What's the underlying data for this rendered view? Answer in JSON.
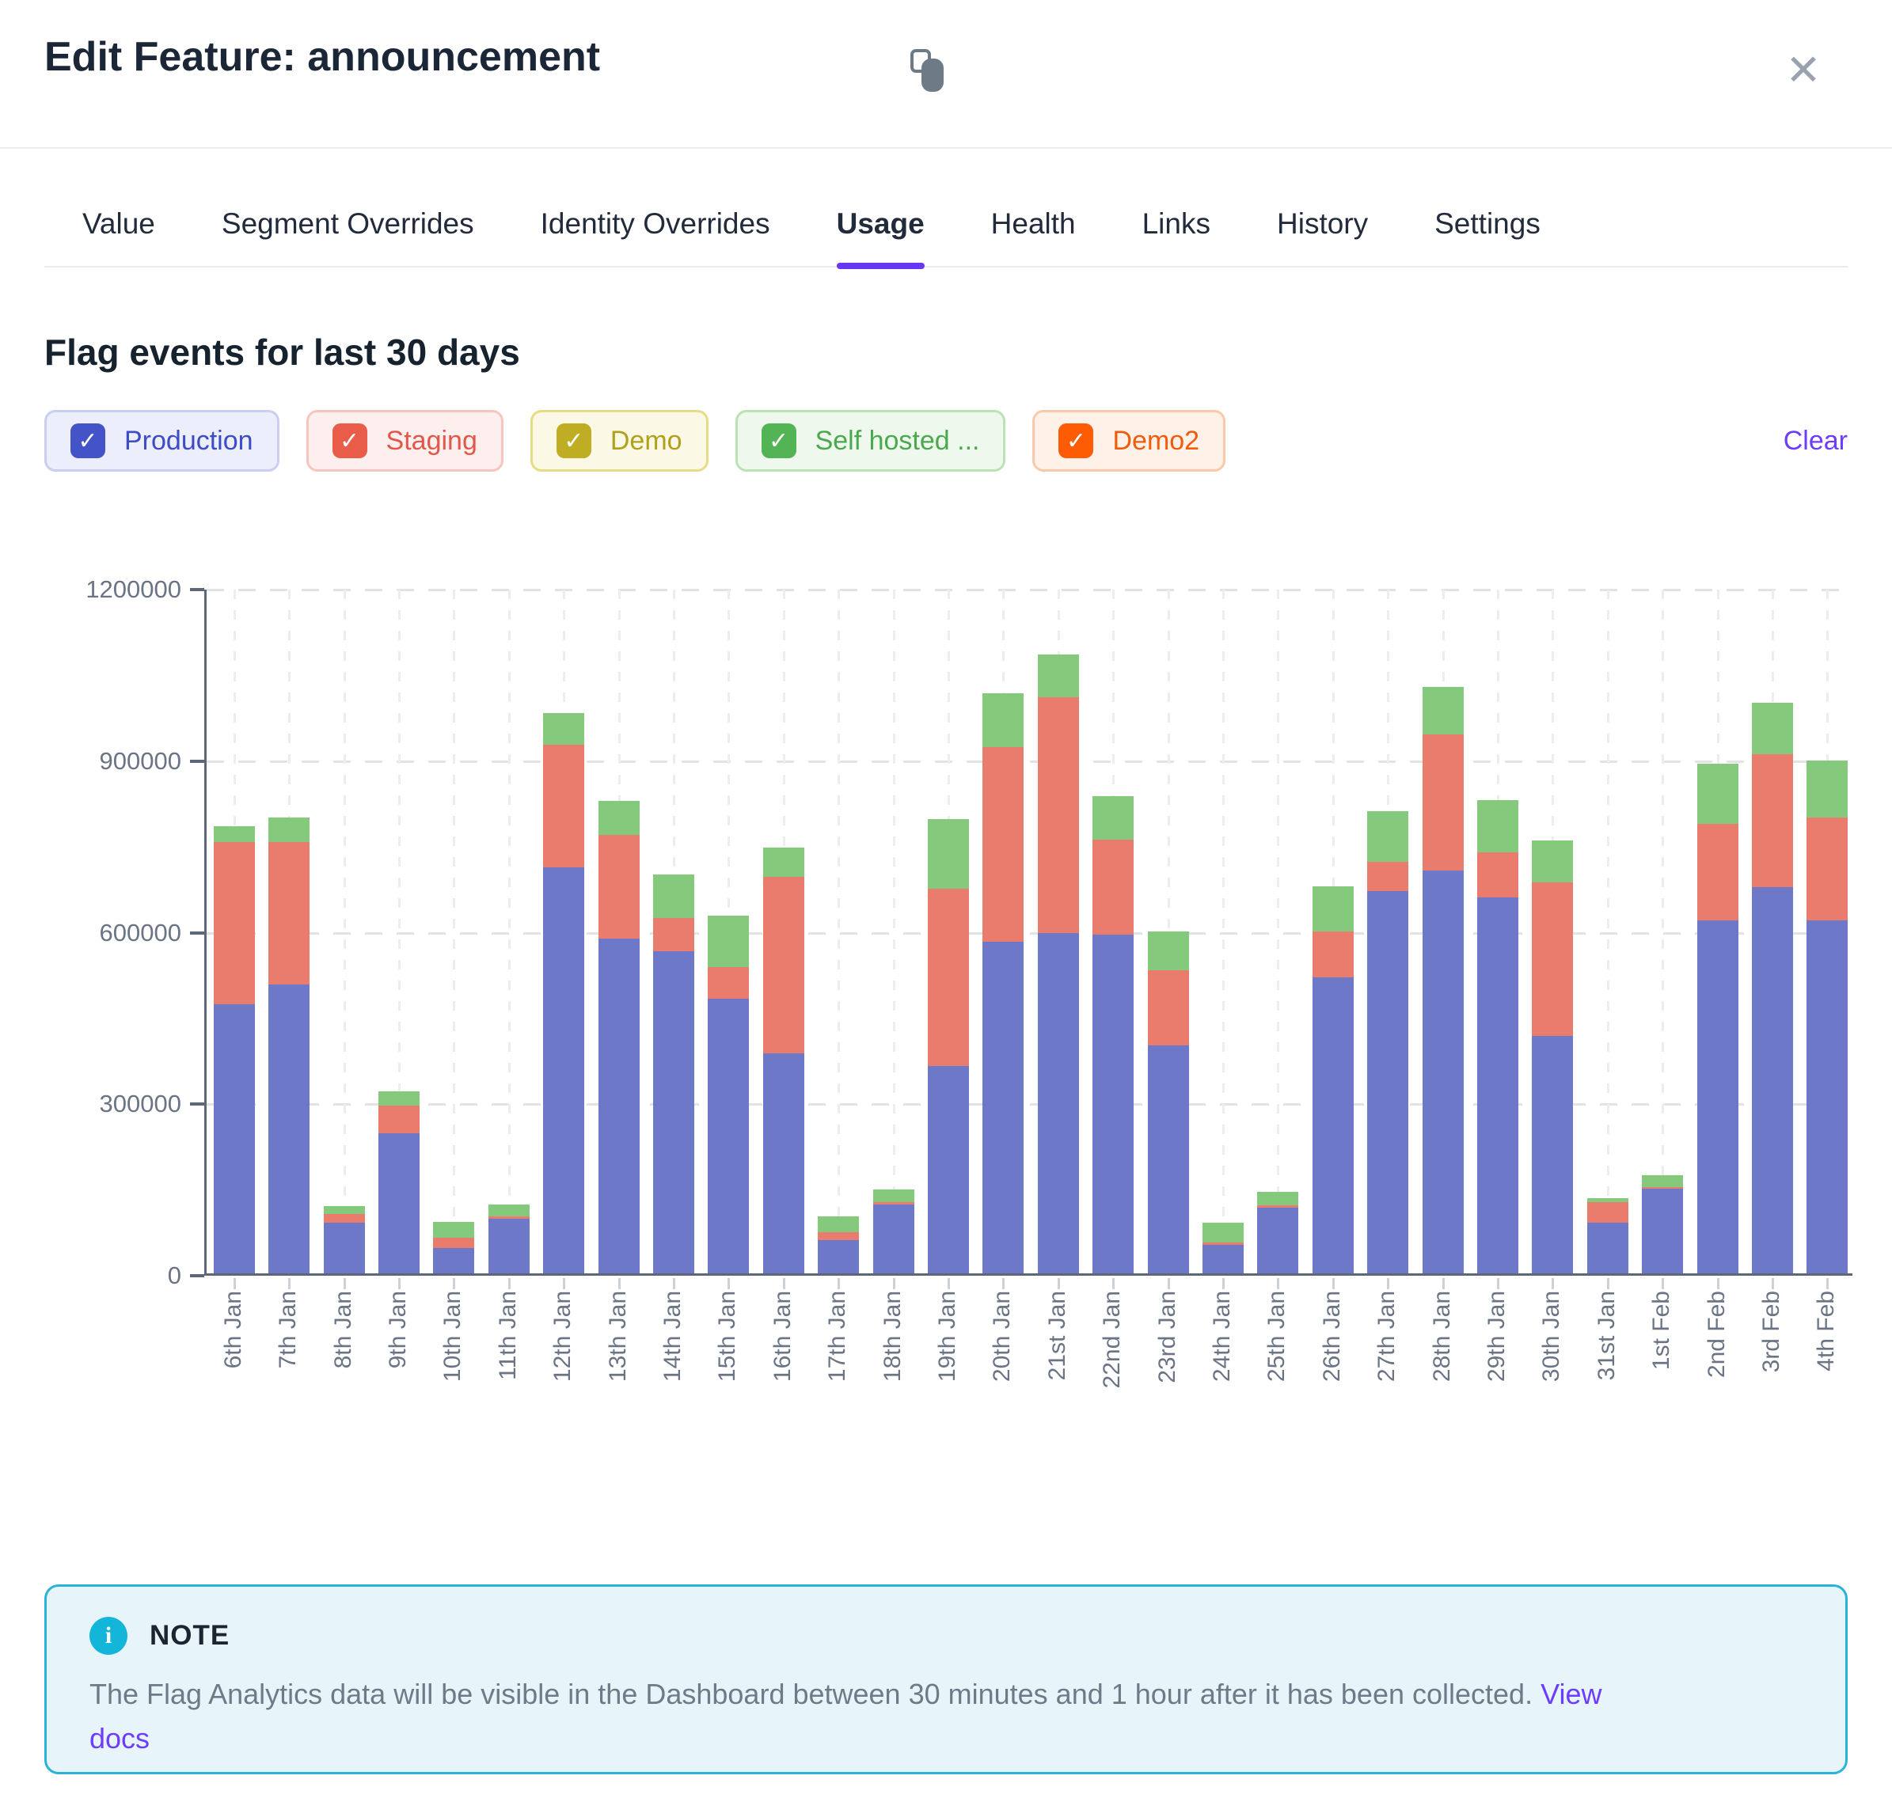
{
  "modal": {
    "title": "Edit Feature: announcement"
  },
  "ui": {
    "close_glyph": "✕",
    "check_glyph": "✓"
  },
  "tabs": [
    {
      "label": "Value",
      "active": false
    },
    {
      "label": "Segment Overrides",
      "active": false
    },
    {
      "label": "Identity Overrides",
      "active": false
    },
    {
      "label": "Usage",
      "active": true
    },
    {
      "label": "Health",
      "active": false
    },
    {
      "label": "Links",
      "active": false
    },
    {
      "label": "History",
      "active": false
    },
    {
      "label": "Settings",
      "active": false
    }
  ],
  "usage": {
    "heading": "Flag events for last 30 days",
    "clear_label": "Clear"
  },
  "env_filters": [
    {
      "label": "Production",
      "checked": true,
      "checkbox": "#4553c9",
      "bg": "#eceefb",
      "border": "#c9cef2",
      "text": "#3d4cc4"
    },
    {
      "label": "Staging",
      "checked": true,
      "checkbox": "#e95c49",
      "bg": "#fdefed",
      "border": "#f6c5bd",
      "text": "#e2574b"
    },
    {
      "label": "Demo",
      "checked": true,
      "checkbox": "#bfae24",
      "bg": "#fbf8e6",
      "border": "#e7dc86",
      "text": "#b0a11c"
    },
    {
      "label": "Self hosted ...",
      "checked": true,
      "checkbox": "#52b455",
      "bg": "#eef8ed",
      "border": "#bce2b4",
      "text": "#4aa94e"
    },
    {
      "label": "Demo2",
      "checked": true,
      "checkbox": "#fd5c05",
      "bg": "#fef1e8",
      "border": "#fac9a9",
      "text": "#f05c0c"
    }
  ],
  "chart_data": {
    "type": "bar",
    "stacked": true,
    "title": "Flag events for last 30 days",
    "xlabel": "",
    "ylabel": "",
    "ylim": [
      0,
      1200000
    ],
    "yticks": [
      0,
      300000,
      600000,
      900000,
      1200000
    ],
    "grid": "dashed",
    "legend_position": "top-chips",
    "x": [
      "6th Jan",
      "7th Jan",
      "8th Jan",
      "9th Jan",
      "10th Jan",
      "11th Jan",
      "12th Jan",
      "13th Jan",
      "14th Jan",
      "15th Jan",
      "16th Jan",
      "17th Jan",
      "18th Jan",
      "19th Jan",
      "20th Jan",
      "21st Jan",
      "22nd Jan",
      "23rd Jan",
      "24th Jan",
      "25th Jan",
      "26th Jan",
      "27th Jan",
      "28th Jan",
      "29th Jan",
      "30th Jan",
      "31st Jan",
      "1st Feb",
      "2nd Feb",
      "3rd Feb",
      "4th Feb"
    ],
    "series": [
      {
        "name": "Production",
        "color": "#6d78c9",
        "values": [
          470000,
          505000,
          88000,
          245000,
          44000,
          96000,
          710000,
          585000,
          563000,
          480000,
          385000,
          58000,
          120000,
          362000,
          580000,
          595000,
          592000,
          399000,
          50000,
          115000,
          517000,
          669000,
          705000,
          657000,
          415000,
          88000,
          148000,
          617000,
          675000,
          617000
        ]
      },
      {
        "name": "Staging",
        "color": "#ea7c6e",
        "values": [
          285000,
          250000,
          16000,
          48000,
          18000,
          4000,
          214000,
          182000,
          59000,
          55000,
          309000,
          14000,
          4000,
          311000,
          341000,
          413000,
          166000,
          131000,
          4000,
          4000,
          81000,
          51000,
          237000,
          79000,
          269000,
          37000,
          3000,
          169000,
          233000,
          180000
        ]
      },
      {
        "name": "Self hosted ...",
        "color": "#85ca7c",
        "values": [
          27000,
          42000,
          13000,
          26000,
          28000,
          21000,
          56000,
          59000,
          76000,
          90000,
          51000,
          28000,
          23000,
          122000,
          93000,
          75000,
          77000,
          68000,
          34000,
          24000,
          79000,
          88000,
          83000,
          92000,
          73000,
          6000,
          20000,
          105000,
          90000,
          100000
        ]
      }
    ]
  },
  "note": {
    "title": "NOTE",
    "text": "The Flag Analytics data will be visible in the Dashboard between 30 minutes and 1 hour after it has been collected.",
    "link_label": "View docs"
  },
  "colors": {
    "accent": "#6d3cfc",
    "tab_underline": "#6837f1",
    "axis": "#5c6878",
    "axis_text": "#6a7485",
    "note_border": "#2ab3d9",
    "note_bg": "#e7f5fb",
    "note_icon": "#13b5d9"
  }
}
